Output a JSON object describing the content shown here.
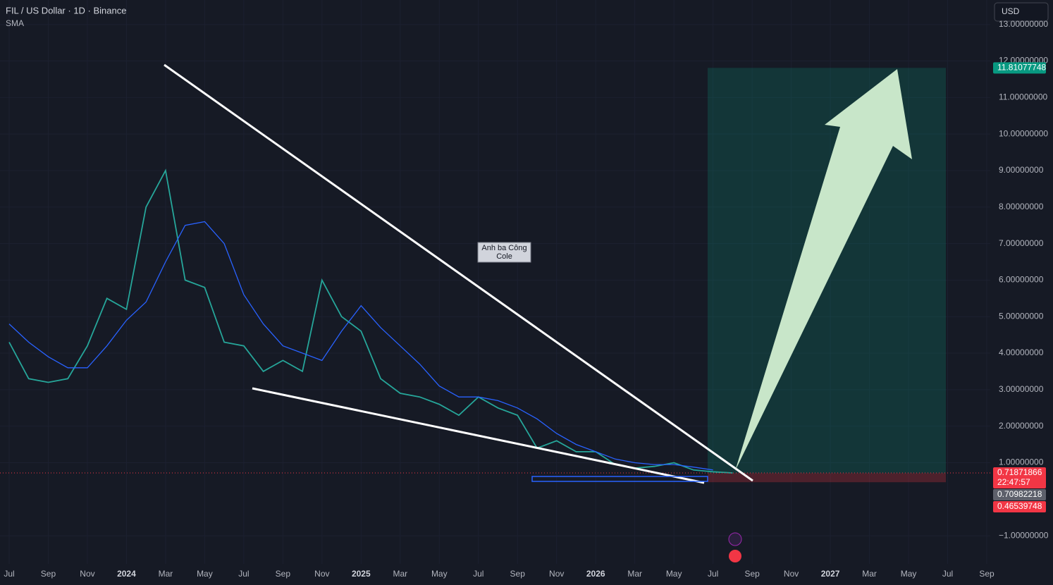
{
  "chart_data": {
    "type": "line",
    "title": "FIL / US Dollar · 1D · Binance",
    "currency": "USD",
    "annotation": "Anh ba Công\nCole",
    "categories": [
      "Jul",
      null,
      "Sep",
      null,
      "Nov",
      null,
      "2024",
      null,
      "Mar",
      null,
      "May",
      null,
      "Jul",
      null,
      "Sep",
      null,
      "Nov",
      null,
      "2025",
      null,
      "Mar",
      null,
      "May",
      null,
      "Jul",
      null,
      "Sep",
      null,
      "Nov",
      null,
      "2026",
      null,
      "Mar",
      null,
      "May",
      null,
      "Jul",
      null,
      "Sep",
      null,
      "Nov",
      null,
      "2027",
      null,
      "Mar",
      null,
      "May",
      null,
      "Jul",
      null,
      "Sep"
    ],
    "series": [
      {
        "color": "#26a69a",
        "values": [
          4.3,
          3.3,
          3.2,
          3.3,
          4.2,
          5.5,
          5.2,
          8.0,
          9.0,
          6.0,
          5.8,
          4.3,
          4.2,
          3.5,
          3.8,
          3.5,
          6.0,
          5.0,
          4.6,
          3.3,
          2.9,
          2.8,
          2.6,
          2.3,
          2.8,
          2.5,
          2.3,
          1.4,
          1.6,
          1.3,
          1.3,
          0.95,
          0.85,
          0.9,
          1.0,
          0.8,
          0.75,
          0.72,
          null,
          null,
          null,
          null,
          null,
          null,
          null,
          null,
          null,
          null,
          null,
          null,
          null
        ]
      },
      {
        "name": "SMA",
        "color": "#2962ff",
        "values": [
          4.8,
          4.3,
          3.9,
          3.6,
          3.6,
          4.2,
          4.9,
          5.4,
          6.5,
          7.5,
          7.6,
          7.0,
          5.6,
          4.8,
          4.2,
          4.0,
          3.8,
          4.6,
          5.3,
          4.7,
          4.2,
          3.7,
          3.1,
          2.8,
          2.8,
          2.7,
          2.5,
          2.2,
          1.8,
          1.5,
          1.3,
          1.1,
          1.0,
          0.95,
          0.95,
          0.88,
          0.8,
          null,
          null,
          null,
          null,
          null,
          null,
          null,
          null,
          null,
          null,
          null,
          null,
          null,
          null
        ]
      }
    ],
    "ylim": [
      -1.77,
      13.67
    ],
    "yticks": [
      {
        "value": 13,
        "label": "13.00000000"
      },
      {
        "value": 12,
        "label": "12.00000000"
      },
      {
        "value": 11,
        "label": "11.00000000"
      },
      {
        "value": 10,
        "label": "10.00000000"
      },
      {
        "value": 9,
        "label": "9.00000000"
      },
      {
        "value": 8,
        "label": "8.00000000"
      },
      {
        "value": 7,
        "label": "7.00000000"
      },
      {
        "value": 6,
        "label": "6.00000000"
      },
      {
        "value": 5,
        "label": "5.00000000"
      },
      {
        "value": 4,
        "label": "4.00000000"
      },
      {
        "value": 3,
        "label": "3.00000000"
      },
      {
        "value": 2,
        "label": "2.00000000"
      },
      {
        "value": 1,
        "label": "1.00000000"
      },
      {
        "value": -1,
        "label": "−1.00000000"
      }
    ],
    "grid": true,
    "price_markers": [
      {
        "value": 11.81077748,
        "color": "#089981"
      },
      {
        "value": 0.71871866,
        "color": "#f23645"
      },
      {
        "value": 0.70982218,
        "color": "#5d606b"
      },
      {
        "value": 0.46539748,
        "color": "#f23645"
      }
    ],
    "countdown": "22:47:57"
  }
}
